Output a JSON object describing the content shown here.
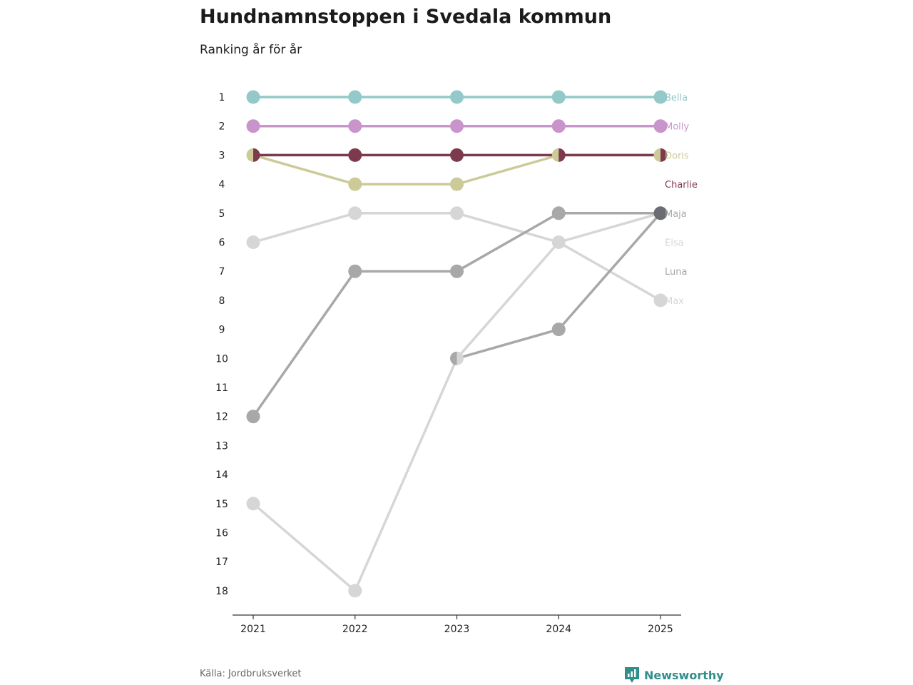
{
  "chart_data": {
    "type": "line",
    "title": "Hundnamnstoppen i Svedala kommun",
    "subtitle": "Ranking år för år",
    "x": [
      "2021",
      "2022",
      "2023",
      "2024",
      "2025"
    ],
    "y_ticks": [
      1,
      2,
      3,
      4,
      5,
      6,
      7,
      8,
      9,
      10,
      11,
      12,
      13,
      14,
      15,
      16,
      17,
      18
    ],
    "ylim": [
      1,
      18
    ],
    "y_reversed": true,
    "grid": false,
    "series": [
      {
        "name": "Bella",
        "color": "#93c9c9",
        "values": [
          1,
          1,
          1,
          1,
          1
        ]
      },
      {
        "name": "Molly",
        "color": "#c994cc",
        "values": [
          2,
          2,
          2,
          2,
          2
        ]
      },
      {
        "name": "Doris",
        "color": "#cccb98",
        "values": [
          3,
          4,
          4,
          3,
          3
        ]
      },
      {
        "name": "Charlie",
        "color": "#7d3a4e",
        "values": [
          3,
          3,
          3,
          3,
          3
        ]
      },
      {
        "name": "Maja",
        "color": "#a8a8a8",
        "values": [
          12,
          7,
          7,
          5,
          5
        ]
      },
      {
        "name": "Elsa",
        "color": "#d6d6d6",
        "values": [
          15,
          18,
          10,
          6,
          5
        ]
      },
      {
        "name": "Luna",
        "color": "#a8a8a8",
        "values": [
          null,
          null,
          10,
          9,
          5
        ]
      },
      {
        "name": "Max",
        "color": "#d6d6d6",
        "values": [
          6,
          5,
          5,
          6,
          8
        ]
      }
    ]
  },
  "source": "Källa: Jordbruksverket",
  "brand": "Newsworthy"
}
